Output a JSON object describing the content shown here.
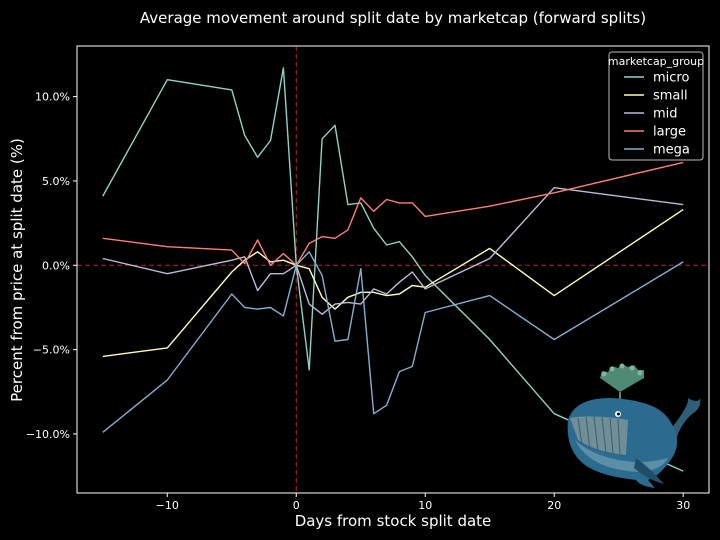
{
  "chart_data": {
    "type": "line",
    "title": "Average movement around split date by marketcap (forward splits)",
    "xlabel": "Days from stock split date",
    "ylabel": "Percent from price at split date (%)",
    "xlim": [
      -17,
      32
    ],
    "ylim": [
      -13.5,
      13
    ],
    "xticks": [
      -10,
      0,
      10,
      20,
      30
    ],
    "yticks": [
      -10,
      -5,
      0,
      5,
      10
    ],
    "ytick_labels": [
      "−10.0%",
      "−5.0%",
      "0.0%",
      "5.0%",
      "10.0%"
    ],
    "xtick_labels": [
      "−10",
      "0",
      "10",
      "20",
      "30"
    ],
    "grid": false,
    "background": "#000000",
    "reference_lines": {
      "x": 0,
      "y": 0,
      "color": "#b22222"
    },
    "legend": {
      "title": "marketcap_group",
      "placement": "top-right"
    },
    "series": [
      {
        "name": "micro",
        "color": "#8dd3c7",
        "x": [
          -15,
          -10,
          -5,
          -4,
          -3,
          -2,
          -1,
          0,
          1,
          2,
          3,
          4,
          5,
          6,
          7,
          8,
          9,
          10,
          15,
          20,
          30
        ],
        "y": [
          4.1,
          11.0,
          10.4,
          7.7,
          6.4,
          7.4,
          11.7,
          0.0,
          -6.2,
          7.5,
          8.3,
          3.6,
          3.7,
          2.2,
          1.2,
          1.4,
          0.5,
          -0.6,
          -4.4,
          -8.8,
          -12.2
        ]
      },
      {
        "name": "small",
        "color": "#ffffb3",
        "x": [
          -15,
          -10,
          -5,
          -4,
          -3,
          -2,
          -1,
          0,
          1,
          2,
          3,
          4,
          5,
          6,
          7,
          8,
          9,
          10,
          15,
          20,
          30
        ],
        "y": [
          -5.4,
          -4.9,
          -0.4,
          0.3,
          0.8,
          0.2,
          0.3,
          0.0,
          -0.2,
          -1.9,
          -2.6,
          -1.9,
          -1.6,
          -1.6,
          -1.8,
          -1.7,
          -1.2,
          -1.3,
          1.0,
          -1.8,
          3.3
        ]
      },
      {
        "name": "mid",
        "color": "#bebada",
        "x": [
          -15,
          -10,
          -5,
          -4,
          -3,
          -2,
          -1,
          0,
          1,
          2,
          3,
          4,
          5,
          6,
          7,
          8,
          9,
          10,
          15,
          20,
          30
        ],
        "y": [
          0.4,
          -0.5,
          0.3,
          0.5,
          -1.5,
          -0.5,
          -0.5,
          0.0,
          -2.3,
          -2.9,
          -2.3,
          -2.2,
          -2.3,
          -1.4,
          -1.7,
          -1.0,
          -0.4,
          -1.4,
          0.4,
          4.6,
          3.6
        ]
      },
      {
        "name": "large",
        "color": "#fb8072",
        "x": [
          -15,
          -10,
          -5,
          -4,
          -3,
          -2,
          -1,
          0,
          1,
          2,
          3,
          4,
          5,
          6,
          7,
          8,
          9,
          10,
          15,
          20,
          30
        ],
        "y": [
          1.6,
          1.1,
          0.9,
          0.1,
          1.5,
          0.0,
          0.7,
          0.0,
          1.3,
          1.7,
          1.6,
          2.1,
          4.0,
          3.2,
          3.9,
          3.7,
          3.7,
          2.9,
          3.5,
          4.3,
          6.1
        ]
      },
      {
        "name": "mega",
        "color": "#80b1d3",
        "x": [
          -15,
          -10,
          -5,
          -4,
          -3,
          -2,
          -1,
          0,
          1,
          2,
          3,
          4,
          5,
          6,
          7,
          8,
          9,
          10,
          15,
          20,
          30
        ],
        "y": [
          -9.9,
          -6.8,
          -1.7,
          -2.5,
          -2.6,
          -2.5,
          -3.0,
          0.0,
          0.8,
          -0.6,
          -4.5,
          -4.4,
          -0.2,
          -8.8,
          -8.3,
          -6.3,
          -6.0,
          -2.8,
          -1.8,
          -4.4,
          0.2
        ]
      }
    ]
  }
}
